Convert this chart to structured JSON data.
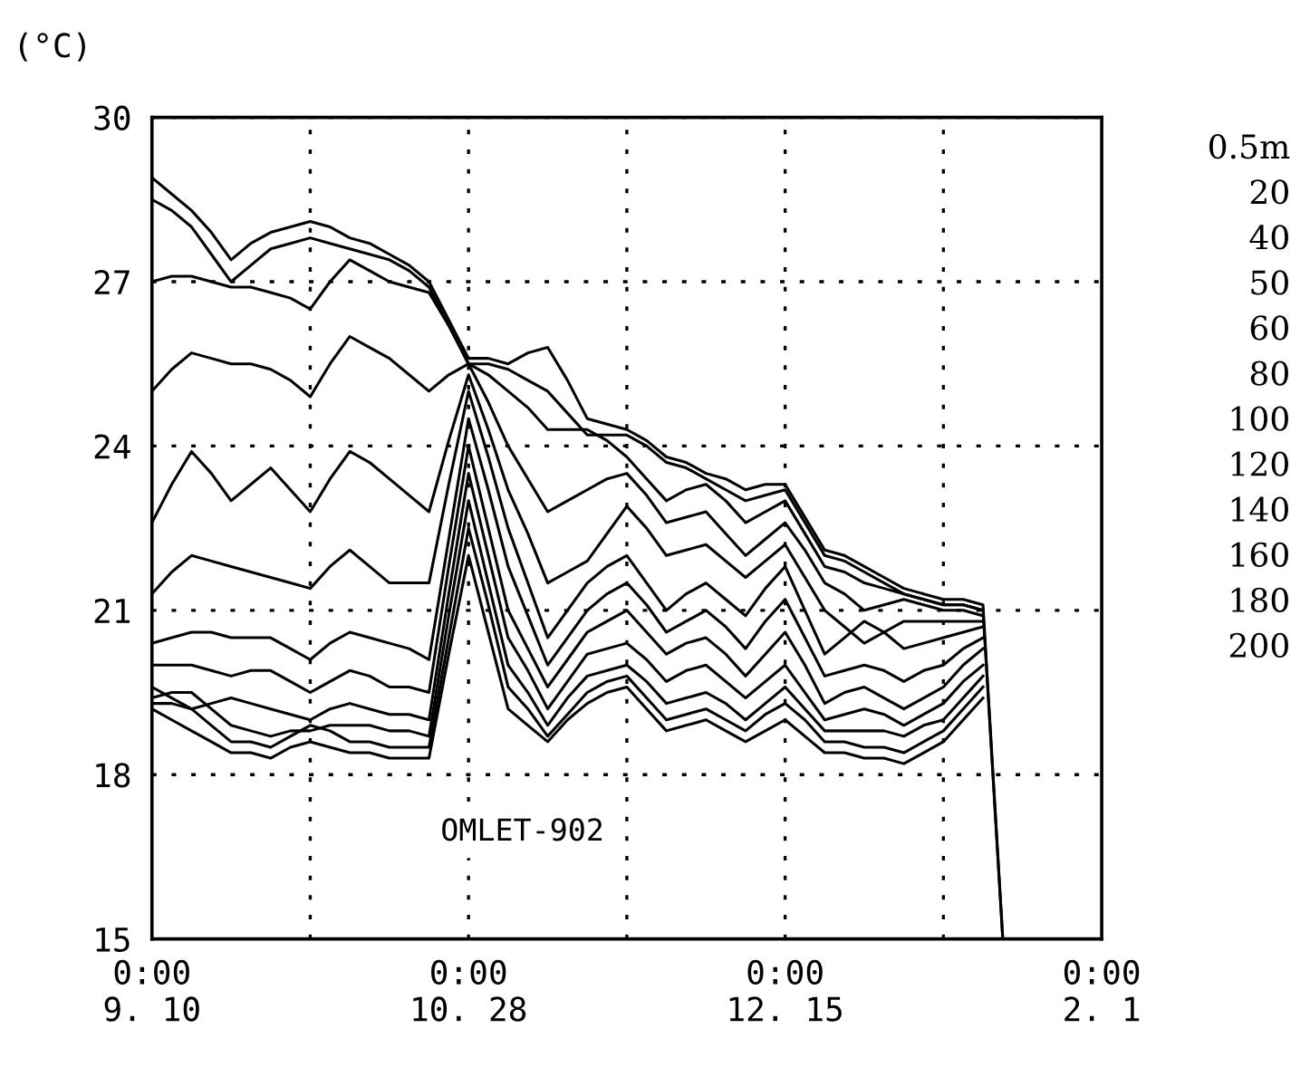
{
  "chart_data": {
    "type": "line",
    "ylabel": "(°C)",
    "annotations": [
      "0.5m",
      "20",
      "40",
      "50",
      "60",
      "80",
      "100",
      "120",
      "140",
      "160",
      "180",
      "200",
      "OMLET-902"
    ],
    "categories": [
      "0:00\n9. 10",
      null,
      null,
      null,
      null,
      null,
      null,
      null,
      null,
      null,
      null,
      null,
      null,
      null,
      null,
      null,
      "0:00\n10. 28",
      null,
      null,
      null,
      null,
      null,
      null,
      null,
      null,
      null,
      null,
      null,
      null,
      null,
      null,
      null,
      "0:00\n12. 15",
      null,
      null,
      null,
      null,
      null,
      null,
      null,
      null,
      null,
      null,
      null,
      null,
      null,
      null,
      null,
      "0:00\n2. 1"
    ],
    "ylim": [
      15,
      30
    ],
    "yticks": [
      15,
      18,
      21,
      24,
      27,
      30
    ],
    "grid": true,
    "line_style": "solid",
    "series": [
      {
        "color": "#000000",
        "values": [
          28.9,
          28.6,
          28.3,
          27.9,
          27.4,
          27.7,
          27.9,
          28.0,
          28.1,
          28.0,
          27.8,
          27.7,
          27.5,
          27.3,
          27.0,
          26.3,
          25.6,
          25.6,
          25.5,
          25.7,
          25.8,
          25.2,
          24.5,
          24.4,
          24.3,
          24.1,
          23.8,
          23.7,
          23.5,
          23.4,
          23.2,
          23.3,
          23.3,
          22.7,
          22.1,
          22.0,
          21.8,
          21.6,
          21.4,
          21.3,
          21.2,
          21.2,
          21.1,
          15,
          null,
          null,
          null,
          null,
          null
        ]
      },
      {
        "color": "#000000",
        "values": [
          28.5,
          28.3,
          28.0,
          27.5,
          27.0,
          27.3,
          27.6,
          27.7,
          27.8,
          27.7,
          27.6,
          27.5,
          27.4,
          27.2,
          26.9,
          26.2,
          25.5,
          25.5,
          25.4,
          25.2,
          25.0,
          24.6,
          24.2,
          24.2,
          24.2,
          24.0,
          23.7,
          23.6,
          23.4,
          23.2,
          23.0,
          23.1,
          23.2,
          22.6,
          22.0,
          21.9,
          21.7,
          21.5,
          21.3,
          21.2,
          21.1,
          21.1,
          21.0,
          15,
          null,
          null,
          null,
          null,
          null
        ]
      },
      {
        "color": "#000000",
        "values": [
          27.0,
          27.1,
          27.1,
          27.0,
          26.9,
          26.9,
          26.8,
          26.7,
          26.5,
          27.0,
          27.4,
          27.2,
          27.0,
          26.9,
          26.8,
          26.2,
          25.5,
          25.3,
          25.0,
          24.7,
          24.3,
          24.3,
          24.3,
          24.1,
          23.8,
          23.4,
          23.0,
          23.2,
          23.3,
          23.0,
          22.6,
          22.8,
          23.0,
          22.4,
          21.8,
          21.7,
          21.5,
          21.4,
          21.3,
          21.2,
          21.1,
          21.1,
          21.0,
          null,
          null,
          null,
          null,
          null,
          null
        ]
      },
      {
        "color": "#000000",
        "values": [
          25.0,
          25.4,
          25.7,
          25.6,
          25.5,
          25.5,
          25.4,
          25.2,
          24.9,
          25.5,
          26.0,
          25.8,
          25.6,
          25.3,
          25.0,
          25.3,
          25.5,
          24.8,
          24.0,
          23.4,
          22.8,
          23.0,
          23.2,
          23.4,
          23.5,
          23.1,
          22.6,
          22.7,
          22.8,
          22.4,
          22.0,
          22.3,
          22.6,
          22.1,
          21.5,
          21.3,
          21.0,
          21.1,
          21.2,
          21.1,
          21.0,
          21.0,
          20.9,
          null,
          null,
          null,
          null,
          null,
          null
        ]
      },
      {
        "color": "#000000",
        "values": [
          22.6,
          23.3,
          23.9,
          23.5,
          23.0,
          23.3,
          23.6,
          23.2,
          22.8,
          23.4,
          23.9,
          23.7,
          23.4,
          23.1,
          22.8,
          24.1,
          25.3,
          24.3,
          23.2,
          22.4,
          21.5,
          21.7,
          21.9,
          22.4,
          22.9,
          22.5,
          22.0,
          22.1,
          22.2,
          21.9,
          21.6,
          21.9,
          22.2,
          21.6,
          21.0,
          20.7,
          20.4,
          20.6,
          20.8,
          20.8,
          20.8,
          20.8,
          20.8,
          null,
          null,
          null,
          null,
          null,
          null
        ]
      },
      {
        "color": "#000000",
        "values": [
          21.3,
          21.7,
          22.0,
          21.9,
          21.8,
          21.7,
          21.6,
          21.5,
          21.4,
          21.8,
          22.1,
          21.8,
          21.5,
          21.5,
          21.5,
          23.3,
          25.0,
          23.8,
          22.5,
          21.5,
          20.5,
          21.0,
          21.5,
          21.8,
          22.0,
          21.5,
          21.0,
          21.3,
          21.5,
          21.2,
          20.9,
          21.4,
          21.8,
          21.0,
          20.2,
          20.5,
          20.8,
          20.6,
          20.3,
          20.4,
          20.5,
          20.6,
          20.7,
          null,
          null,
          null,
          null,
          null,
          null
        ]
      },
      {
        "color": "#000000",
        "values": [
          20.4,
          20.5,
          20.6,
          20.6,
          20.5,
          20.5,
          20.5,
          20.3,
          20.1,
          20.4,
          20.6,
          20.5,
          20.4,
          20.3,
          20.1,
          22.3,
          24.5,
          23.2,
          21.8,
          20.9,
          20.0,
          20.5,
          21.0,
          21.3,
          21.5,
          21.1,
          20.6,
          20.8,
          21.0,
          20.7,
          20.3,
          20.8,
          21.2,
          20.5,
          19.8,
          19.9,
          20.0,
          19.9,
          19.7,
          19.9,
          20.0,
          20.3,
          20.5,
          null,
          null,
          null,
          null,
          null,
          null
        ]
      },
      {
        "color": "#000000",
        "values": [
          20.0,
          20.0,
          20.0,
          19.9,
          19.8,
          19.9,
          19.9,
          19.7,
          19.5,
          19.7,
          19.9,
          19.8,
          19.6,
          19.6,
          19.5,
          21.8,
          24.0,
          22.5,
          21.0,
          20.3,
          19.6,
          20.1,
          20.6,
          20.8,
          21.0,
          20.6,
          20.2,
          20.4,
          20.5,
          20.2,
          19.8,
          20.2,
          20.6,
          20.0,
          19.3,
          19.5,
          19.6,
          19.4,
          19.2,
          19.4,
          19.6,
          20.0,
          20.3,
          null,
          null,
          null,
          null,
          null,
          null
        ]
      },
      {
        "color": "#000000",
        "values": [
          19.6,
          19.4,
          19.2,
          19.3,
          19.4,
          19.3,
          19.2,
          19.1,
          19.0,
          19.2,
          19.3,
          19.2,
          19.1,
          19.1,
          19.0,
          21.3,
          23.5,
          22.0,
          20.5,
          19.9,
          19.2,
          19.7,
          20.2,
          20.3,
          20.4,
          20.1,
          19.7,
          19.9,
          20.0,
          19.7,
          19.4,
          19.7,
          20.0,
          19.5,
          19.0,
          19.1,
          19.2,
          19.1,
          18.9,
          19.1,
          19.3,
          19.7,
          20.0,
          null,
          null,
          null,
          null,
          null,
          null
        ]
      },
      {
        "color": "#000000",
        "values": [
          19.4,
          19.5,
          19.5,
          19.2,
          18.9,
          18.8,
          18.7,
          18.8,
          18.8,
          18.9,
          18.9,
          18.9,
          18.8,
          18.8,
          18.7,
          20.9,
          23.0,
          21.5,
          20.0,
          19.5,
          18.9,
          19.4,
          19.8,
          19.9,
          20.0,
          19.7,
          19.3,
          19.4,
          19.5,
          19.3,
          19.0,
          19.3,
          19.6,
          19.2,
          18.8,
          18.8,
          18.8,
          18.8,
          18.7,
          18.9,
          19.0,
          19.4,
          19.8,
          null,
          null,
          null,
          null,
          null,
          null
        ]
      },
      {
        "color": "#000000",
        "values": [
          19.3,
          19.3,
          19.2,
          18.9,
          18.6,
          18.6,
          18.5,
          18.7,
          18.9,
          18.8,
          18.6,
          18.6,
          18.5,
          18.5,
          18.5,
          20.5,
          22.5,
          21.1,
          19.6,
          19.2,
          18.7,
          19.1,
          19.5,
          19.7,
          19.8,
          19.4,
          19.0,
          19.1,
          19.2,
          19.0,
          18.8,
          19.1,
          19.3,
          19.0,
          18.6,
          18.6,
          18.5,
          18.5,
          18.4,
          18.6,
          18.8,
          19.2,
          19.6,
          null,
          null,
          null,
          null,
          null,
          null
        ]
      },
      {
        "color": "#000000",
        "values": [
          19.2,
          19.0,
          18.8,
          18.6,
          18.4,
          18.4,
          18.3,
          18.5,
          18.6,
          18.5,
          18.4,
          18.4,
          18.3,
          18.3,
          18.3,
          20.2,
          22.0,
          20.6,
          19.2,
          18.9,
          18.6,
          19.0,
          19.3,
          19.5,
          19.6,
          19.2,
          18.8,
          18.9,
          19.0,
          18.8,
          18.6,
          18.8,
          19.0,
          18.7,
          18.4,
          18.4,
          18.3,
          18.3,
          18.2,
          18.4,
          18.6,
          19.0,
          19.4,
          null,
          null,
          null,
          null,
          null,
          null
        ]
      }
    ]
  }
}
